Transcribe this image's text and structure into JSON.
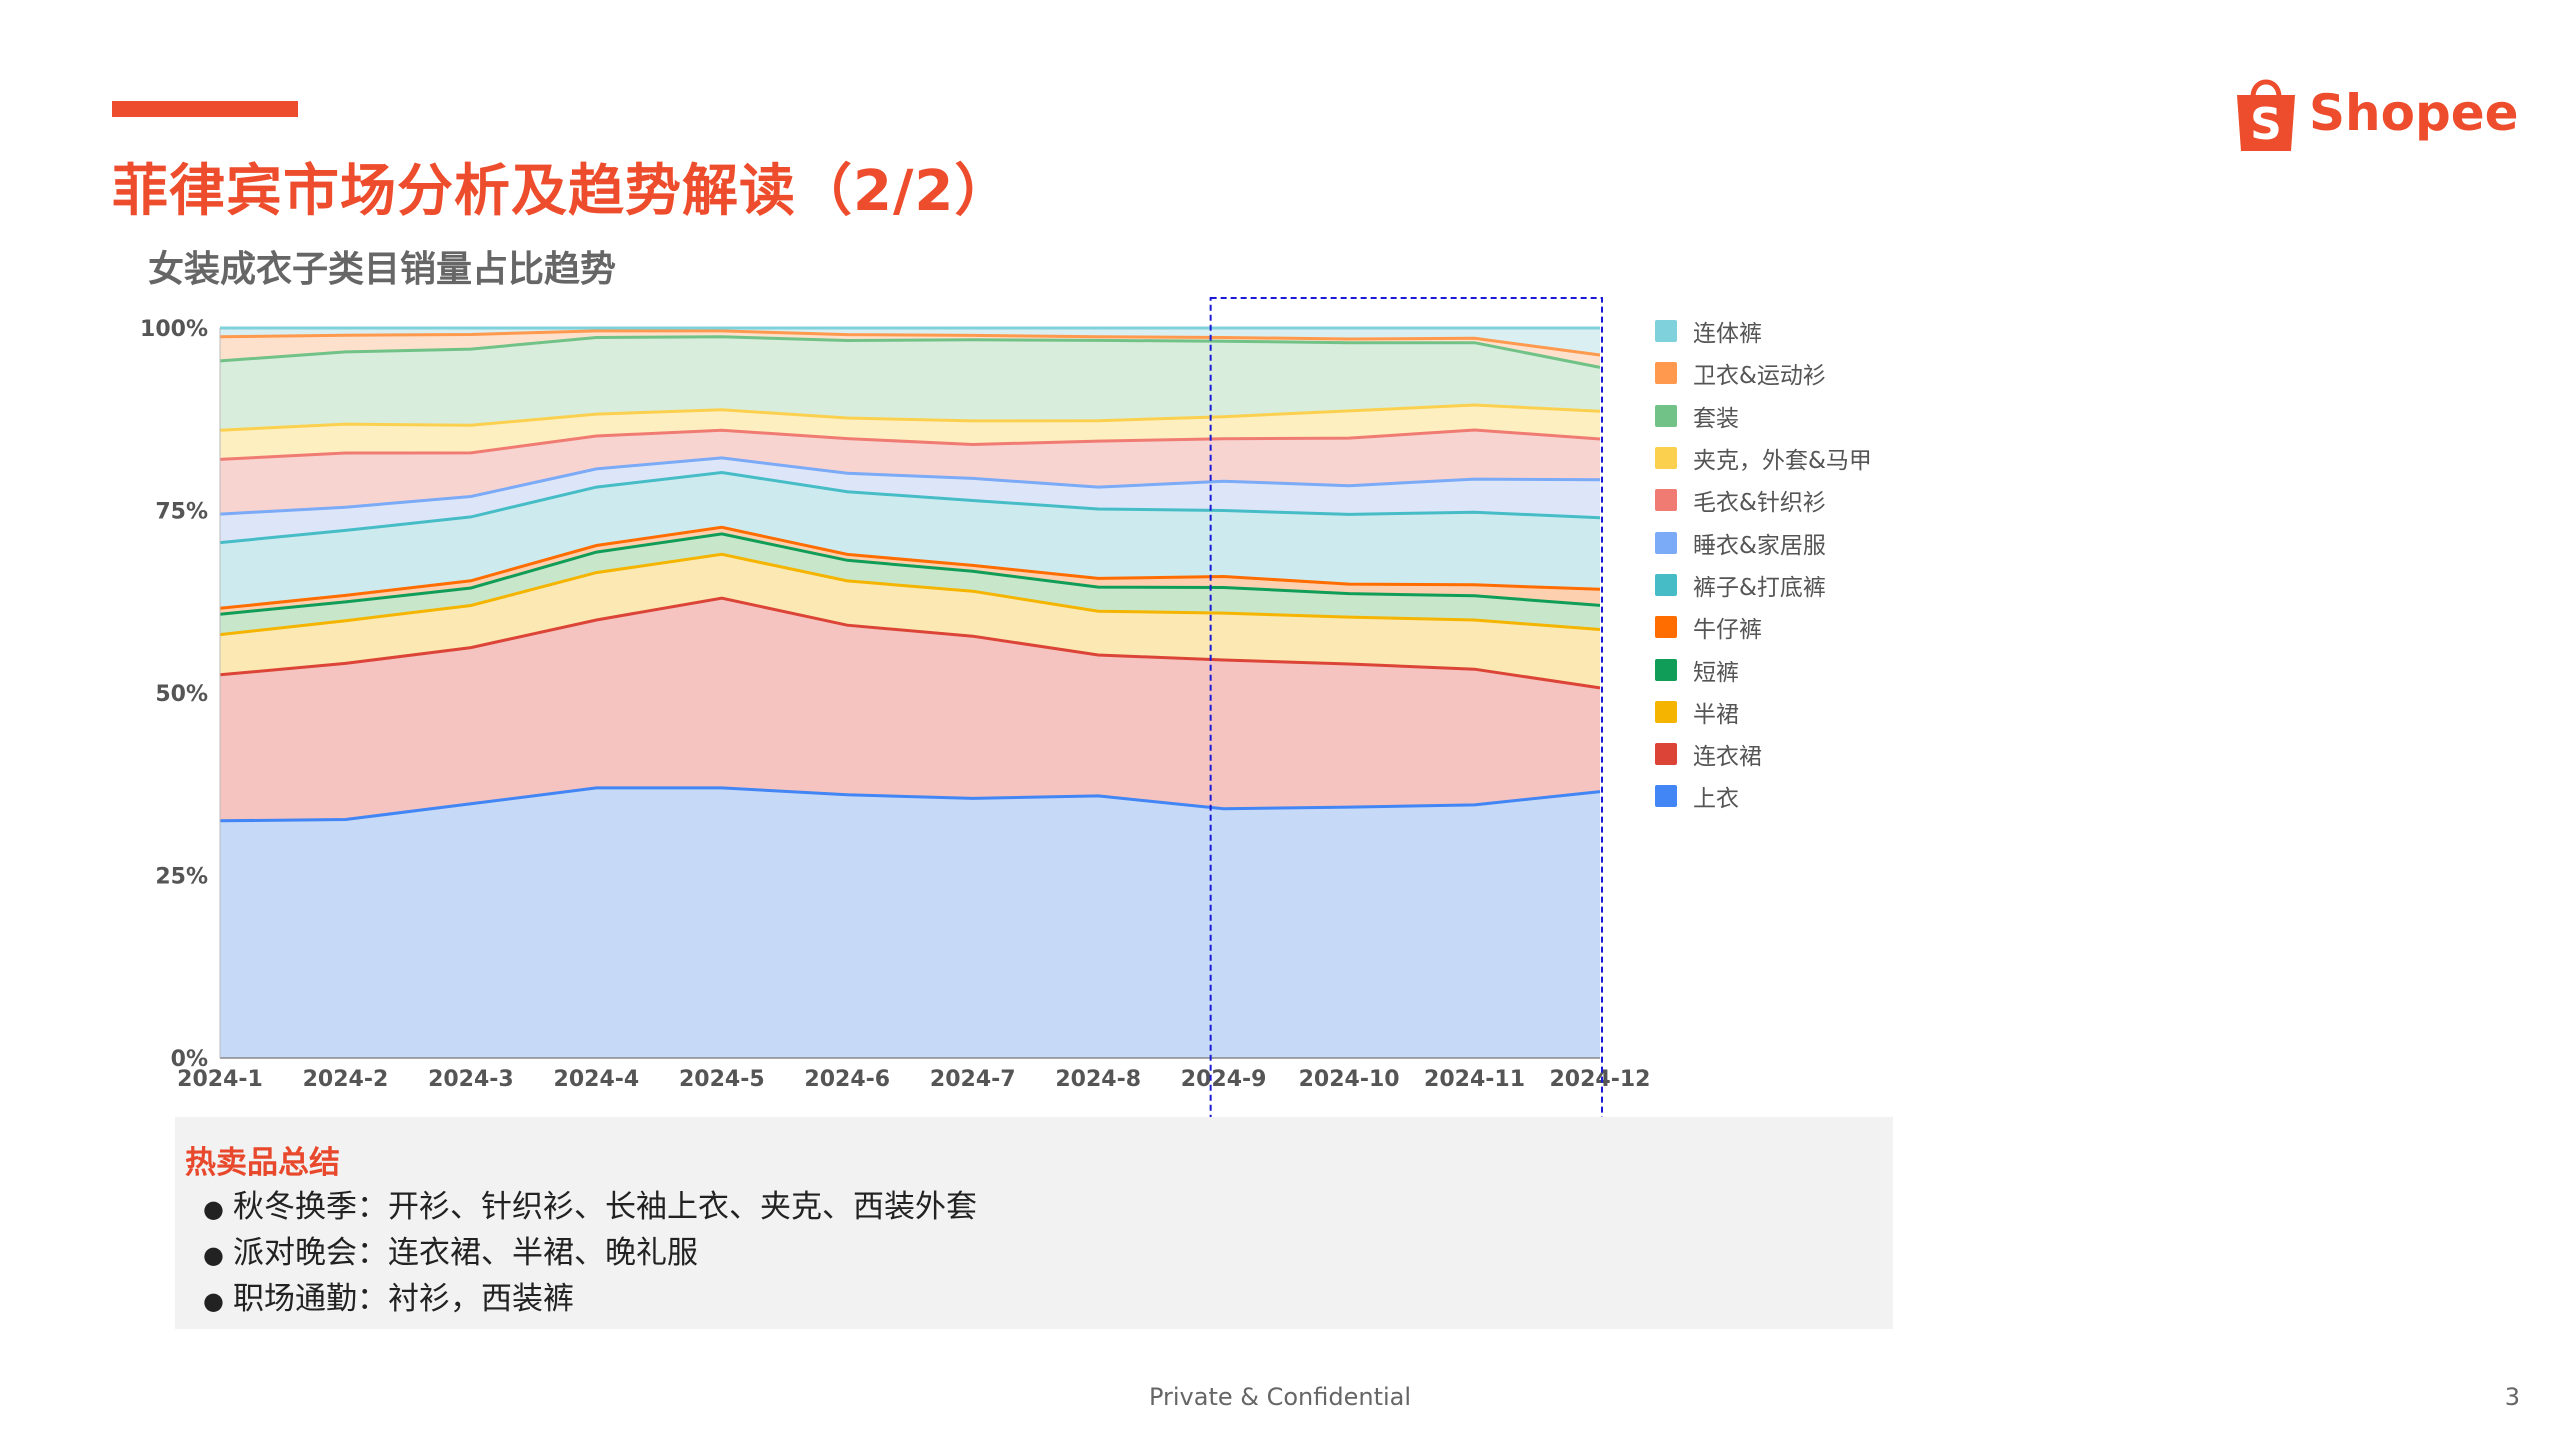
{
  "colors": {
    "accent": "#ee4d2d",
    "highlight_box": "#1a1ad6",
    "summary_title": "#e8482b"
  },
  "header": {
    "title": "菲律宾市场分析及趋势解读（2/2）",
    "logo_text": "Shopee",
    "logo_icon": "shopee-bag-icon"
  },
  "chart_data": {
    "type": "area",
    "title": "女装成衣子类目销量占比趋势",
    "stacked": true,
    "percent": true,
    "categories": [
      "2024-1",
      "2024-2",
      "2024-3",
      "2024-4",
      "2024-5",
      "2024-6",
      "2024-7",
      "2024-8",
      "2024-9",
      "2024-10",
      "2024-11",
      "2024-12"
    ],
    "y_ticks": [
      "0%",
      "25%",
      "50%",
      "75%",
      "100%"
    ],
    "ylim": [
      0,
      100
    ],
    "grid": true,
    "legend_position": "right",
    "highlight_range": [
      "2024-9",
      "2024-12"
    ],
    "series": [
      {
        "name": "上衣",
        "color": "#4285f4",
        "fill": "#c6d9f7",
        "values": [
          32.5,
          33,
          35,
          37,
          37,
          35.7,
          35.2,
          35.9,
          34,
          34.2,
          34.5,
          36.5
        ]
      },
      {
        "name": "连衣裙",
        "color": "#db4437",
        "fill": "#f5c4c0",
        "values": [
          20,
          21.6,
          21.5,
          23,
          26,
          23,
          22,
          19.3,
          20.3,
          19.5,
          18.5,
          14.2
        ]
      },
      {
        "name": "半裙",
        "color": "#f4b400",
        "fill": "#fce8b2",
        "values": [
          5.5,
          5.9,
          5.8,
          6.5,
          6,
          6,
          6.1,
          6,
          6.4,
          6.4,
          6.7,
          8
        ]
      },
      {
        "name": "短裤",
        "color": "#0f9d58",
        "fill": "#c8e6c9",
        "values": [
          2.8,
          2.6,
          2.4,
          2.8,
          2.8,
          2.8,
          2.7,
          3.3,
          3.5,
          3.2,
          3.3,
          3.3
        ]
      },
      {
        "name": "牛仔裤",
        "color": "#ff6d00",
        "fill": "#fdd0b0",
        "values": [
          0.8,
          0.9,
          1,
          0.9,
          0.9,
          0.8,
          0.8,
          1.2,
          1.5,
          1.3,
          1.5,
          2.2
        ]
      },
      {
        "name": "裤子&打底裤",
        "color": "#46bdc6",
        "fill": "#cdebee",
        "values": [
          9,
          9,
          8.8,
          8,
          7.5,
          8.5,
          8.8,
          9.5,
          9,
          9.5,
          9.9,
          9.8
        ]
      },
      {
        "name": "睡衣&家居服",
        "color": "#7baaf7",
        "fill": "#dde6f8",
        "values": [
          3.9,
          3.2,
          2.8,
          2.5,
          2,
          2.5,
          3,
          3,
          4,
          3.9,
          4.5,
          5.2
        ]
      },
      {
        "name": "毛衣&针织衫",
        "color": "#f07b72",
        "fill": "#f8d4d1",
        "values": [
          7.5,
          7.5,
          6,
          4.5,
          3.8,
          4.7,
          4.6,
          6.3,
          5.8,
          6.5,
          6.7,
          5.6
        ]
      },
      {
        "name": "夹克，外套&马甲",
        "color": "#fcd04f",
        "fill": "#fdefc0",
        "values": [
          4,
          4,
          3.8,
          3,
          2.8,
          2.8,
          3.2,
          2.8,
          3,
          3.7,
          3.4,
          3.8
        ]
      },
      {
        "name": "套装",
        "color": "#71c287",
        "fill": "#d8eddc",
        "values": [
          9.5,
          10,
          10.5,
          10.5,
          10,
          10.5,
          11,
          11,
          10.3,
          9.3,
          8.5,
          6
        ]
      },
      {
        "name": "卫衣&运动衫",
        "color": "#ff994d",
        "fill": "#fde1cc",
        "values": [
          3.3,
          2.3,
          2,
          0.9,
          0.8,
          0.8,
          0.6,
          0.5,
          0.5,
          0.5,
          0.6,
          1.7
        ]
      },
      {
        "name": "连体裤",
        "color": "#7fd1db",
        "fill": "#d9eff2",
        "values": [
          1.2,
          1,
          0.9,
          0.4,
          0.4,
          0.9,
          1.0,
          1.2,
          1.3,
          1.5,
          1.4,
          3.7
        ]
      }
    ]
  },
  "summary": {
    "title": "热卖品总结",
    "bullet": "●",
    "items": [
      "秋冬换季：开衫、针织衫、长袖上衣、夹克、西装外套",
      "派对晚会：连衣裙、半裙、晚礼服",
      "职场通勤：衬衫，西装裤"
    ]
  },
  "footer": {
    "text": "Private & Confidential",
    "page_number": "3"
  }
}
